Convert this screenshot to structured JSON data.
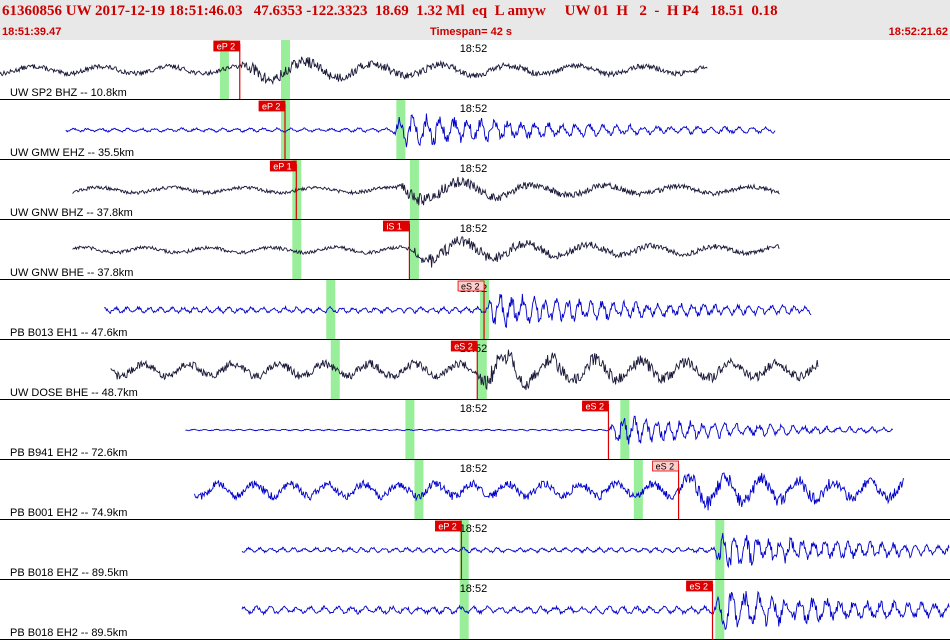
{
  "header": {
    "title_line": "61360856 UW 2017-12-19 18:51:46.03   47.6353 -122.3323  18.69  1.32 Ml  eq  L amyw     UW 01  H   2  -  H P4   18.51  0.18",
    "start_time": "18:51:39.47",
    "timespan": "Timespan=  42 s",
    "end_time": "18:52:21.62"
  },
  "colors": {
    "trace_black": "#1a1a3a",
    "trace_blue": "#0000cc",
    "pick": "#dd0000",
    "pick_light": "#ffcccc",
    "window": "#99ee99",
    "panel_border": "#000000",
    "header_bg": "#e8e8e8"
  },
  "chart_data": {
    "type": "line",
    "x_range_seconds": [
      0,
      42
    ],
    "minute_mark": "18:52",
    "minute_mark_seconds": 20.5,
    "traces": [
      {
        "label": "UW SP2 BHZ -- 10.8km",
        "color": "black",
        "data_start": 0.0,
        "data_end": 31.3,
        "picks": [
          {
            "label": "eP 2",
            "time": 10.6,
            "style": "solid"
          }
        ],
        "windows": [
          9.9,
          12.6
        ],
        "signal_period": 3.0,
        "onset": 10.6,
        "noise_amp": 0.2,
        "event_amp": 0.45
      },
      {
        "label": "UW GMW EHZ -- 35.5km",
        "color": "blue",
        "data_start": 2.9,
        "data_end": 34.3,
        "picks": [
          {
            "label": "eP 2",
            "time": 12.6,
            "style": "solid"
          }
        ],
        "windows": [
          12.6,
          17.7
        ],
        "signal_period": 0.6,
        "onset": 17.3,
        "noise_amp": 0.08,
        "event_amp": 0.7
      },
      {
        "label": "UW GNW BHZ -- 37.8km",
        "color": "black",
        "data_start": 3.2,
        "data_end": 34.5,
        "picks": [
          {
            "label": "eP 1",
            "time": 13.1,
            "style": "solid"
          }
        ],
        "windows": [
          13.1,
          18.3
        ],
        "signal_period": 3.2,
        "onset": 17.5,
        "noise_amp": 0.15,
        "event_amp": 0.5
      },
      {
        "label": "UW GNW BHE -- 37.8km",
        "color": "black",
        "data_start": 3.2,
        "data_end": 34.5,
        "picks": [
          {
            "label": "iS 1",
            "time": 18.1,
            "style": "solid"
          }
        ],
        "windows": [
          13.1,
          18.3
        ],
        "signal_period": 2.8,
        "onset": 18.1,
        "noise_amp": 0.15,
        "event_amp": 0.55
      },
      {
        "label": "PB B013 EH1 -- 47.6km",
        "color": "blue",
        "data_start": 4.6,
        "data_end": 35.9,
        "picks": [
          {
            "label": "eS 2",
            "time": 21.4,
            "style": "light"
          }
        ],
        "windows": [
          14.6,
          21.4
        ],
        "signal_period": 0.5,
        "onset": 21.4,
        "noise_amp": 0.12,
        "event_amp": 0.6
      },
      {
        "label": "UW DOSE BHE -- 48.7km",
        "color": "black",
        "data_start": 4.9,
        "data_end": 36.2,
        "picks": [
          {
            "label": "eS 2",
            "time": 21.1,
            "style": "solid"
          }
        ],
        "windows": [
          14.8,
          21.3
        ],
        "signal_period": 2.0,
        "onset": 21.1,
        "noise_amp": 0.35,
        "event_amp": 0.55
      },
      {
        "label": "PB B941 EH2 -- 72.6km",
        "color": "blue",
        "data_start": 8.2,
        "data_end": 39.5,
        "picks": [
          {
            "label": "eS 2",
            "time": 26.9,
            "style": "solid"
          }
        ],
        "windows": [
          18.1,
          27.6
        ],
        "signal_period": 0.5,
        "onset": 26.9,
        "noise_amp": 0.03,
        "event_amp": 0.6
      },
      {
        "label": "PB B001 EH2 -- 74.9km",
        "color": "blue",
        "data_start": 8.6,
        "data_end": 40.0,
        "picks": [
          {
            "label": "eS 2",
            "time": 30.0,
            "style": "light"
          }
        ],
        "windows": [
          18.5,
          28.2
        ],
        "signal_period": 1.6,
        "onset": 30.0,
        "noise_amp": 0.35,
        "event_amp": 0.45
      },
      {
        "label": "PB B018 EHZ -- 89.5km",
        "color": "blue",
        "data_start": 10.7,
        "data_end": 42.0,
        "picks": [
          {
            "label": "eP 2",
            "time": 20.4,
            "style": "solid"
          }
        ],
        "windows": [
          20.5,
          31.8
        ],
        "signal_period": 0.5,
        "onset": 31.5,
        "noise_amp": 0.1,
        "event_amp": 0.7
      },
      {
        "label": "PB B018 EH2 -- 89.5km",
        "color": "blue",
        "data_start": 10.7,
        "data_end": 42.0,
        "picks": [
          {
            "label": "eS 2",
            "time": 31.5,
            "style": "solid"
          }
        ],
        "windows": [
          20.5,
          31.8
        ],
        "signal_period": 0.6,
        "onset": 31.5,
        "noise_amp": 0.15,
        "event_amp": 0.7
      }
    ]
  }
}
